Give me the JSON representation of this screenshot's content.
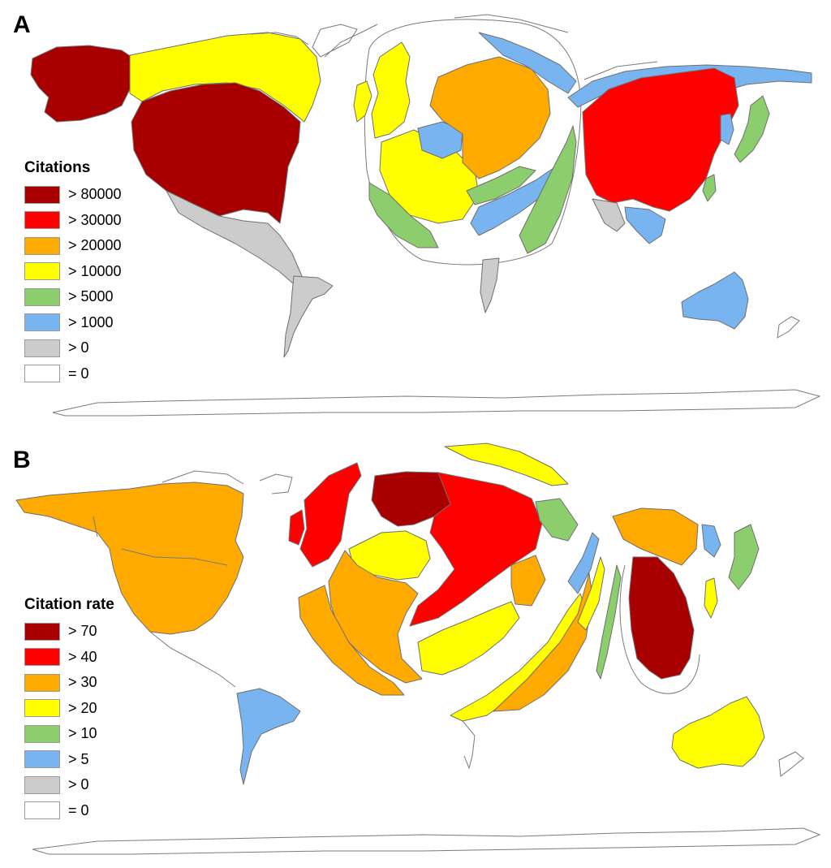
{
  "panels": [
    {
      "letter": "A",
      "legend_title": "Citations",
      "legend": [
        {
          "label": "> 80000",
          "color": "#a80000"
        },
        {
          "label": "> 30000",
          "color": "#ff0000"
        },
        {
          "label": "> 20000",
          "color": "#ffaa00"
        },
        {
          "label": "> 10000",
          "color": "#ffff00"
        },
        {
          "label": "> 5000",
          "color": "#8ccd6e"
        },
        {
          "label": "> 1000",
          "color": "#78b4f0"
        },
        {
          "label": "> 0",
          "color": "#cccccc"
        },
        {
          "label": "= 0",
          "color": "#ffffff"
        }
      ]
    },
    {
      "letter": "B",
      "legend_title": "Citation rate",
      "legend": [
        {
          "label": "> 70",
          "color": "#a80000"
        },
        {
          "label": "> 40",
          "color": "#ff0000"
        },
        {
          "label": "> 30",
          "color": "#ffaa00"
        },
        {
          "label": "> 20",
          "color": "#ffff00"
        },
        {
          "label": "> 10",
          "color": "#8ccd6e"
        },
        {
          "label": "> 5",
          "color": "#78b4f0"
        },
        {
          "label": "> 0",
          "color": "#cccccc"
        },
        {
          "label": "= 0",
          "color": "#ffffff"
        }
      ]
    }
  ]
}
